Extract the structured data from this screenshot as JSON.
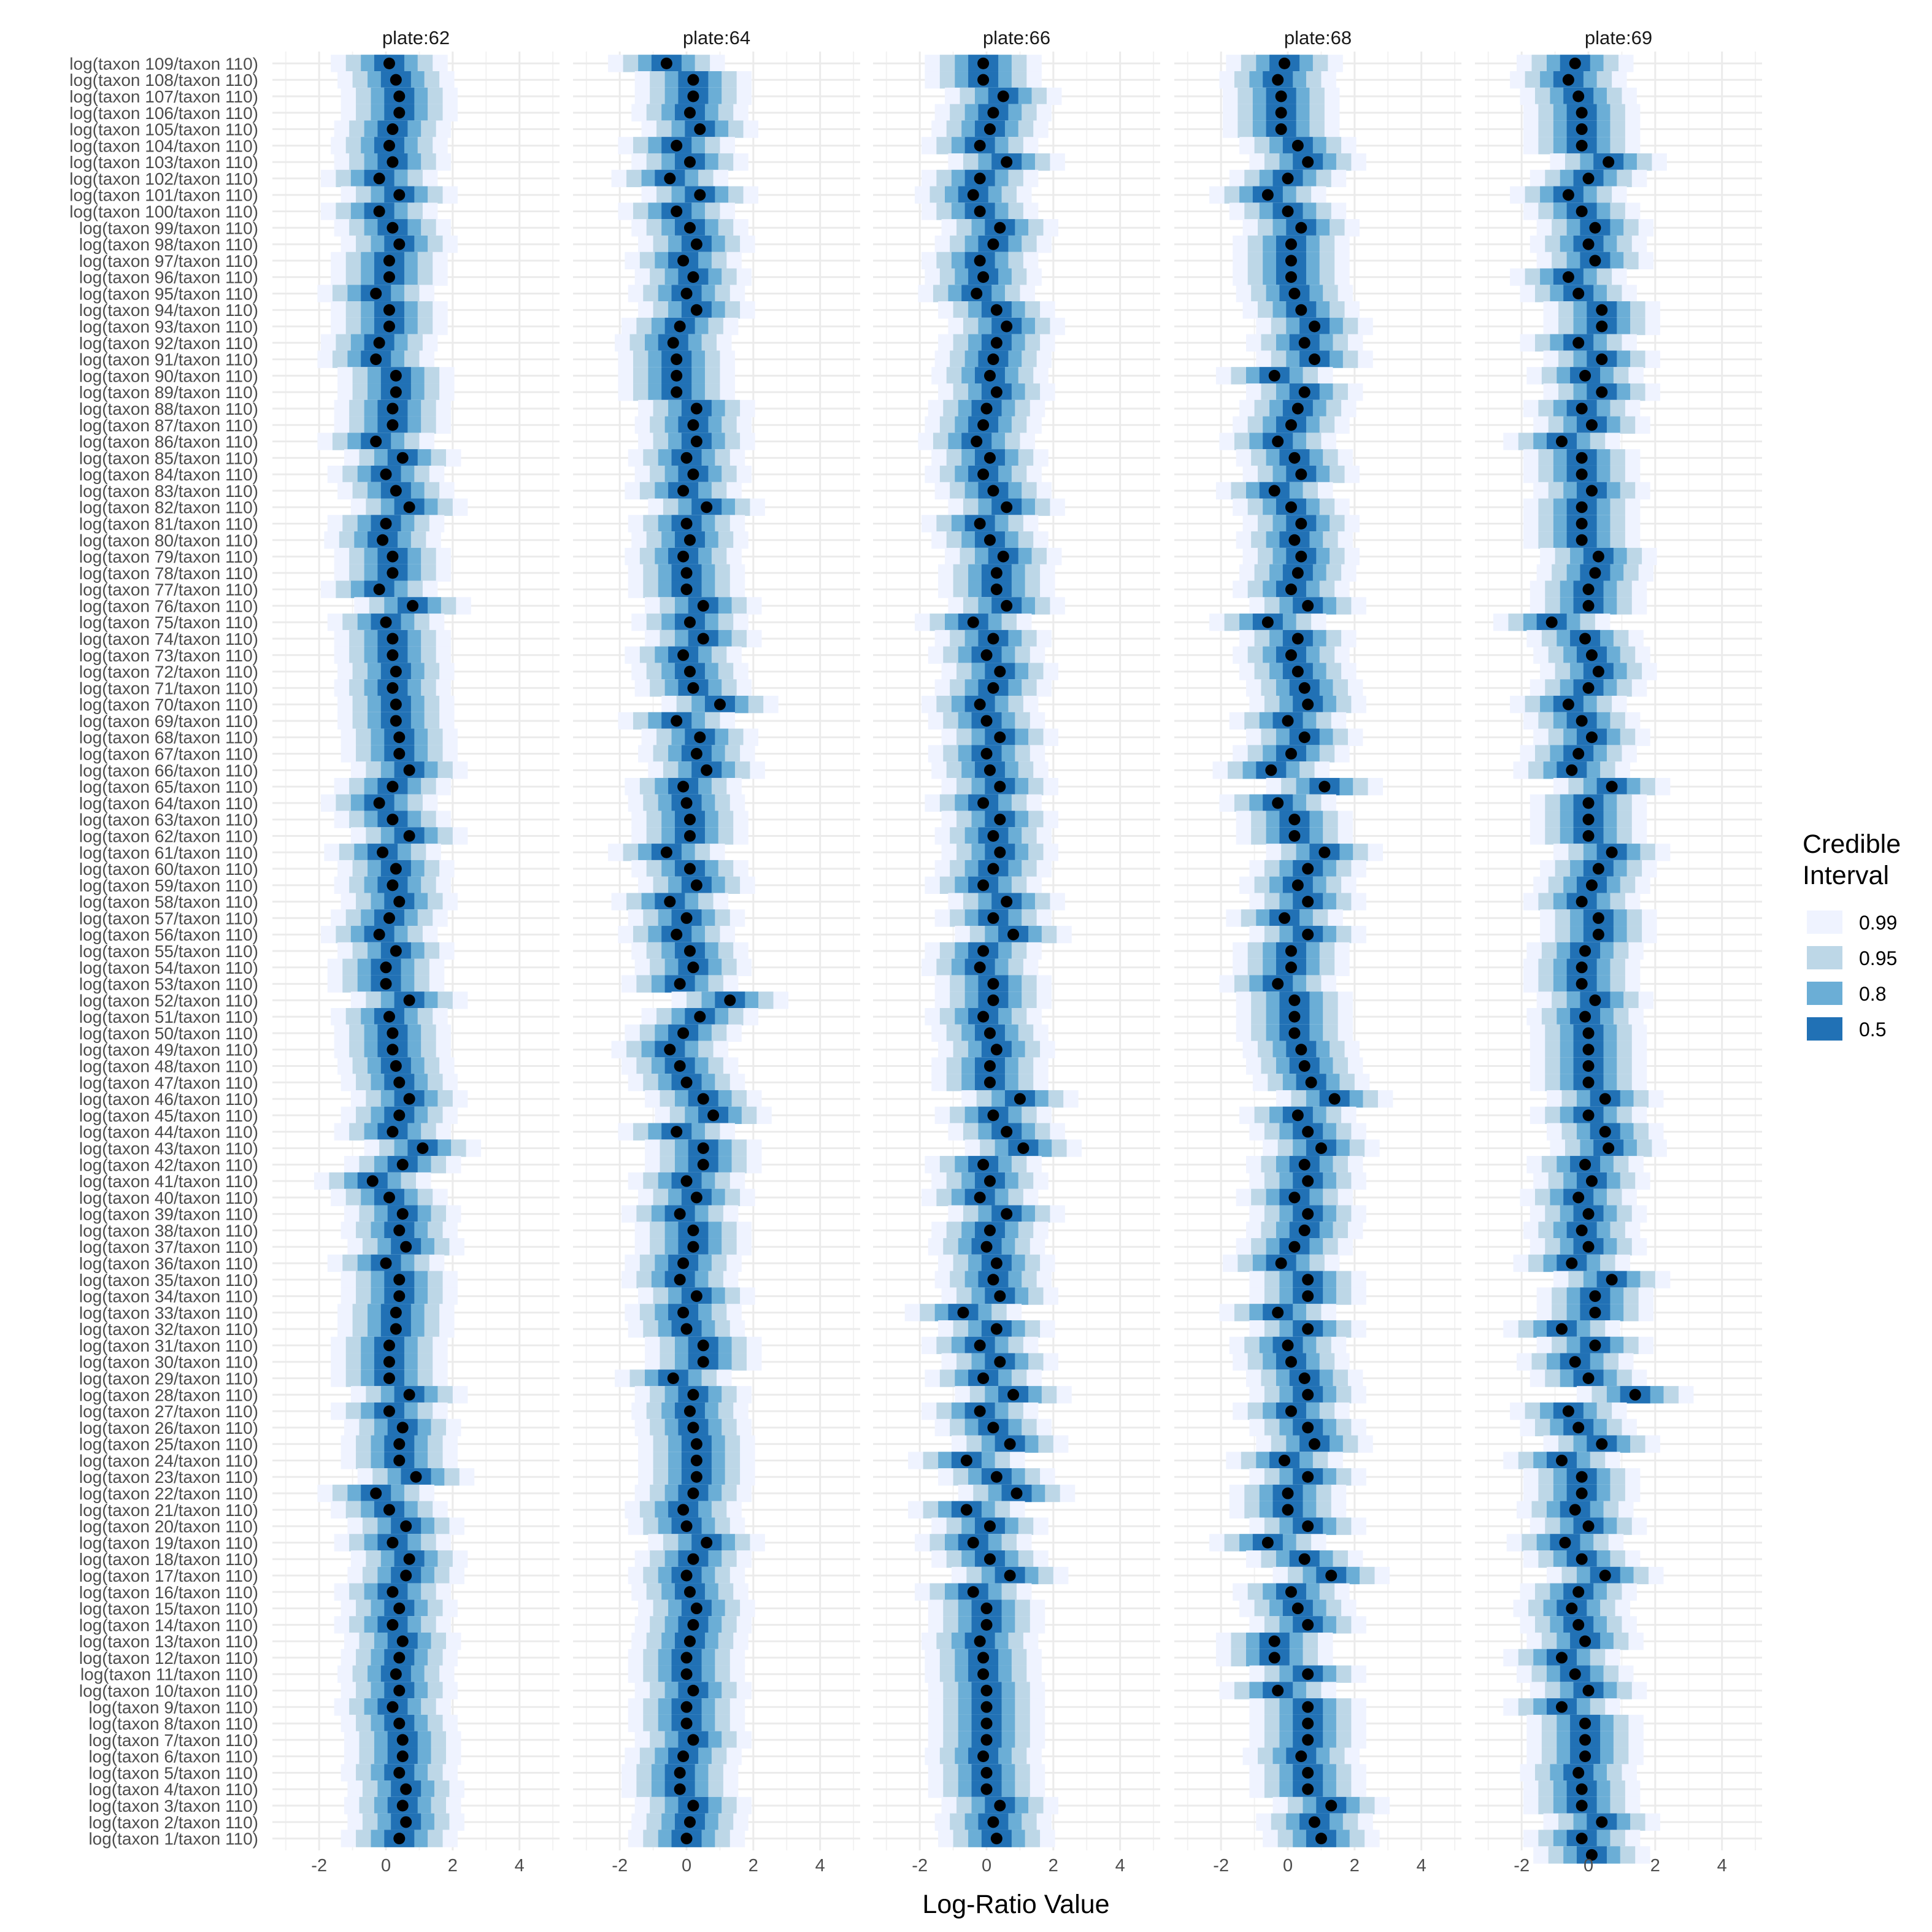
{
  "chart_data": {
    "type": "interval",
    "xlabel": "Log-Ratio Value",
    "ylabel": "",
    "xlim": [
      -3.4,
      5.2
    ],
    "x_ticks": [
      -2,
      0,
      2,
      4
    ],
    "x_tick_labels": [
      "-2",
      "0",
      "2",
      "4"
    ],
    "grid": true,
    "legend_position": "right",
    "legend": {
      "title": "Credible Interval",
      "title_lines": [
        "Credible",
        "Interval"
      ],
      "levels": [
        {
          "label": "0.99",
          "color": "#eff3ff"
        },
        {
          "label": "0.95",
          "color": "#bdd7e7"
        },
        {
          "label": "0.8",
          "color": "#6baed6"
        },
        {
          "label": "0.5",
          "color": "#2171b5"
        }
      ]
    },
    "point_color": "#000000",
    "half_widths": {
      "0.5": 0.45,
      "0.8": 0.85,
      "0.95": 1.3,
      "0.99": 1.75
    },
    "categories": [
      "log(taxon 109/taxon 110)",
      "log(taxon 108/taxon 110)",
      "log(taxon 107/taxon 110)",
      "log(taxon 106/taxon 110)",
      "log(taxon 105/taxon 110)",
      "log(taxon 104/taxon 110)",
      "log(taxon 103/taxon 110)",
      "log(taxon 102/taxon 110)",
      "log(taxon 101/taxon 110)",
      "log(taxon 100/taxon 110)",
      "log(taxon 99/taxon 110)",
      "log(taxon 98/taxon 110)",
      "log(taxon 97/taxon 110)",
      "log(taxon 96/taxon 110)",
      "log(taxon 95/taxon 110)",
      "log(taxon 94/taxon 110)",
      "log(taxon 93/taxon 110)",
      "log(taxon 92/taxon 110)",
      "log(taxon 91/taxon 110)",
      "log(taxon 90/taxon 110)",
      "log(taxon 89/taxon 110)",
      "log(taxon 88/taxon 110)",
      "log(taxon 87/taxon 110)",
      "log(taxon 86/taxon 110)",
      "log(taxon 85/taxon 110)",
      "log(taxon 84/taxon 110)",
      "log(taxon 83/taxon 110)",
      "log(taxon 82/taxon 110)",
      "log(taxon 81/taxon 110)",
      "log(taxon 80/taxon 110)",
      "log(taxon 79/taxon 110)",
      "log(taxon 78/taxon 110)",
      "log(taxon 77/taxon 110)",
      "log(taxon 76/taxon 110)",
      "log(taxon 75/taxon 110)",
      "log(taxon 74/taxon 110)",
      "log(taxon 73/taxon 110)",
      "log(taxon 72/taxon 110)",
      "log(taxon 71/taxon 110)",
      "log(taxon 70/taxon 110)",
      "log(taxon 69/taxon 110)",
      "log(taxon 68/taxon 110)",
      "log(taxon 67/taxon 110)",
      "log(taxon 66/taxon 110)",
      "log(taxon 65/taxon 110)",
      "log(taxon 64/taxon 110)",
      "log(taxon 63/taxon 110)",
      "log(taxon 62/taxon 110)",
      "log(taxon 61/taxon 110)",
      "log(taxon 60/taxon 110)",
      "log(taxon 59/taxon 110)",
      "log(taxon 58/taxon 110)",
      "log(taxon 57/taxon 110)",
      "log(taxon 56/taxon 110)",
      "log(taxon 55/taxon 110)",
      "log(taxon 54/taxon 110)",
      "log(taxon 53/taxon 110)",
      "log(taxon 52/taxon 110)",
      "log(taxon 51/taxon 110)",
      "log(taxon 50/taxon 110)",
      "log(taxon 49/taxon 110)",
      "log(taxon 48/taxon 110)",
      "log(taxon 47/taxon 110)",
      "log(taxon 46/taxon 110)",
      "log(taxon 45/taxon 110)",
      "log(taxon 44/taxon 110)",
      "log(taxon 43/taxon 110)",
      "log(taxon 42/taxon 110)",
      "log(taxon 41/taxon 110)",
      "log(taxon 40/taxon 110)",
      "log(taxon 39/taxon 110)",
      "log(taxon 38/taxon 110)",
      "log(taxon 37/taxon 110)",
      "log(taxon 36/taxon 110)",
      "log(taxon 35/taxon 110)",
      "log(taxon 34/taxon 110)",
      "log(taxon 33/taxon 110)",
      "log(taxon 32/taxon 110)",
      "log(taxon 31/taxon 110)",
      "log(taxon 30/taxon 110)",
      "log(taxon 29/taxon 110)",
      "log(taxon 28/taxon 110)",
      "log(taxon 27/taxon 110)",
      "log(taxon 26/taxon 110)",
      "log(taxon 25/taxon 110)",
      "log(taxon 24/taxon 110)",
      "log(taxon 23/taxon 110)",
      "log(taxon 22/taxon 110)",
      "log(taxon 21/taxon 110)",
      "log(taxon 20/taxon 110)",
      "log(taxon 19/taxon 110)",
      "log(taxon 18/taxon 110)",
      "log(taxon 17/taxon 110)",
      "log(taxon 16/taxon 110)",
      "log(taxon 15/taxon 110)",
      "log(taxon 14/taxon 110)",
      "log(taxon 13/taxon 110)",
      "log(taxon 12/taxon 110)",
      "log(taxon 11/taxon 110)",
      "log(taxon 10/taxon 110)",
      "log(taxon 9/taxon 110)",
      "log(taxon 8/taxon 110)",
      "log(taxon 7/taxon 110)",
      "log(taxon 6/taxon 110)",
      "log(taxon 5/taxon 110)",
      "log(taxon 4/taxon 110)",
      "log(taxon 3/taxon 110)",
      "log(taxon 2/taxon 110)",
      "log(taxon 1/taxon 110)"
    ],
    "panels": [
      {
        "name": "plate:62",
        "medians": [
          0.1,
          0.3,
          0.4,
          0.4,
          0.2,
          0.1,
          0.2,
          -0.2,
          0.4,
          -0.2,
          0.2,
          0.4,
          0.1,
          0.1,
          -0.3,
          0.1,
          0.1,
          -0.2,
          -0.3,
          0.3,
          0.3,
          0.2,
          0.2,
          -0.3,
          0.5,
          0.0,
          0.3,
          0.7,
          0.0,
          -0.1,
          0.2,
          0.2,
          -0.2,
          0.8,
          0.0,
          0.2,
          0.2,
          0.3,
          0.2,
          0.3,
          0.3,
          0.4,
          0.4,
          0.7,
          0.2,
          -0.2,
          0.2,
          0.7,
          -0.1,
          0.3,
          0.2,
          0.4,
          0.1,
          -0.2,
          0.3,
          0.0,
          0.0,
          0.7,
          0.1,
          0.2,
          0.2,
          0.3,
          0.4,
          0.7,
          0.4,
          0.2,
          1.1,
          0.5,
          -0.4,
          0.1,
          0.5,
          0.4,
          0.6,
          0.0,
          0.4,
          0.4,
          0.3,
          0.3,
          0.1,
          0.1,
          0.1,
          0.7,
          0.1,
          0.5,
          0.4,
          0.4,
          0.9,
          -0.3,
          0.1,
          0.6,
          0.2,
          0.7,
          0.6,
          0.2,
          0.4,
          0.2,
          0.5,
          0.4,
          0.3,
          0.4,
          0.2,
          0.4,
          0.5,
          0.5,
          0.4,
          0.6,
          0.5,
          0.6,
          0.4
        ]
      },
      {
        "name": "plate:64",
        "medians": [
          -0.6,
          0.2,
          0.2,
          0.1,
          0.4,
          -0.3,
          0.1,
          -0.5,
          0.4,
          -0.3,
          0.1,
          0.3,
          -0.1,
          0.2,
          0.0,
          0.3,
          -0.2,
          -0.4,
          -0.3,
          -0.3,
          -0.3,
          0.3,
          0.2,
          0.3,
          0.0,
          0.2,
          -0.1,
          0.6,
          0.0,
          0.1,
          -0.1,
          0.0,
          0.0,
          0.5,
          0.1,
          0.5,
          -0.1,
          0.1,
          0.2,
          1.0,
          -0.3,
          0.4,
          0.3,
          0.6,
          -0.1,
          0.0,
          0.1,
          0.1,
          -0.6,
          0.1,
          0.3,
          -0.5,
          0.0,
          -0.3,
          0.1,
          0.2,
          -0.2,
          1.3,
          0.4,
          -0.1,
          -0.5,
          -0.2,
          0.0,
          0.5,
          0.8,
          -0.3,
          0.5,
          0.5,
          0.0,
          0.3,
          -0.2,
          0.2,
          0.2,
          -0.1,
          -0.2,
          0.3,
          -0.1,
          0.0,
          0.5,
          0.5,
          -0.4,
          0.2,
          0.1,
          0.2,
          0.3,
          0.3,
          0.3,
          0.2,
          -0.1,
          0.0,
          0.6,
          0.2,
          0.0,
          0.1,
          0.3,
          0.2,
          0.1,
          0.0,
          0.0,
          0.2,
          0.0,
          0.0,
          0.2,
          -0.1,
          -0.2,
          -0.2,
          0.2,
          0.1,
          0.0
        ]
      },
      {
        "name": "plate:66",
        "medians": [
          -0.1,
          -0.1,
          0.5,
          0.2,
          0.1,
          -0.2,
          0.6,
          -0.2,
          -0.4,
          -0.2,
          0.4,
          0.2,
          -0.2,
          -0.1,
          -0.3,
          0.3,
          0.6,
          0.3,
          0.2,
          0.1,
          0.3,
          0.0,
          -0.1,
          -0.3,
          0.1,
          -0.1,
          0.2,
          0.6,
          -0.2,
          0.1,
          0.5,
          0.3,
          0.3,
          0.6,
          -0.4,
          0.2,
          0.0,
          0.4,
          0.2,
          -0.2,
          0.0,
          0.4,
          0.0,
          0.1,
          0.4,
          -0.1,
          0.4,
          0.2,
          0.4,
          0.2,
          -0.1,
          0.6,
          0.2,
          0.8,
          -0.1,
          -0.2,
          0.2,
          0.2,
          -0.1,
          0.1,
          0.3,
          0.1,
          0.1,
          1.0,
          0.2,
          0.6,
          1.1,
          -0.1,
          0.1,
          -0.2,
          0.6,
          0.1,
          0.0,
          0.3,
          0.2,
          0.4,
          -0.7,
          0.3,
          -0.2,
          0.4,
          -0.1,
          0.8,
          -0.2,
          0.2,
          0.7,
          -0.6,
          0.3,
          0.9,
          -0.6,
          0.1,
          -0.4,
          0.1,
          0.7,
          -0.4,
          0.0,
          0.0,
          -0.2,
          -0.1,
          -0.1,
          0.0,
          0.0,
          0.0,
          0.0,
          -0.1,
          0.0,
          0.0,
          0.4,
          0.2,
          0.3
        ]
      },
      {
        "name": "plate:68",
        "medians": [
          -0.1,
          -0.3,
          -0.2,
          -0.2,
          -0.2,
          0.3,
          0.6,
          0.0,
          -0.6,
          0.0,
          0.4,
          0.1,
          0.1,
          0.1,
          0.2,
          0.4,
          0.8,
          0.5,
          0.8,
          -0.4,
          0.5,
          0.3,
          0.1,
          -0.3,
          0.2,
          0.4,
          -0.4,
          0.1,
          0.4,
          0.2,
          0.4,
          0.3,
          0.1,
          0.6,
          -0.6,
          0.3,
          0.1,
          0.3,
          0.5,
          0.6,
          0.0,
          0.5,
          0.1,
          -0.5,
          1.1,
          -0.3,
          0.2,
          0.2,
          1.1,
          0.6,
          0.3,
          0.6,
          -0.1,
          0.6,
          0.1,
          0.1,
          -0.3,
          0.2,
          0.2,
          0.2,
          0.4,
          0.5,
          0.7,
          1.4,
          0.3,
          0.6,
          1.0,
          0.5,
          0.6,
          0.2,
          0.6,
          0.5,
          0.2,
          -0.2,
          0.6,
          0.6,
          -0.3,
          0.6,
          0.0,
          0.1,
          0.5,
          0.6,
          0.1,
          0.6,
          0.8,
          -0.1,
          0.6,
          0.0,
          0.0,
          0.6,
          -0.6,
          0.5,
          1.3,
          0.1,
          0.3,
          0.6,
          -0.4,
          -0.4,
          0.6,
          -0.3,
          0.6,
          0.6,
          0.6,
          0.4,
          0.6,
          0.6,
          1.3,
          0.8,
          1.0
        ]
      },
      {
        "name": "plate:69",
        "medians": [
          -0.4,
          -0.6,
          -0.3,
          -0.2,
          -0.2,
          -0.2,
          0.6,
          0.0,
          -0.6,
          -0.2,
          0.2,
          0.0,
          0.2,
          -0.6,
          -0.3,
          0.4,
          0.4,
          -0.3,
          0.4,
          -0.1,
          0.4,
          -0.2,
          0.1,
          -0.8,
          -0.2,
          -0.2,
          0.1,
          -0.2,
          -0.2,
          -0.2,
          0.3,
          0.2,
          0.0,
          0.0,
          -1.1,
          -0.1,
          0.1,
          0.3,
          0.0,
          -0.6,
          -0.2,
          0.1,
          -0.3,
          -0.5,
          0.7,
          0.0,
          0.0,
          0.0,
          0.7,
          0.3,
          0.1,
          -0.2,
          0.3,
          0.3,
          -0.1,
          -0.2,
          -0.2,
          0.2,
          -0.1,
          0.0,
          0.0,
          0.0,
          0.0,
          0.5,
          0.0,
          0.5,
          0.6,
          -0.1,
          0.1,
          -0.3,
          0.0,
          -0.2,
          0.0,
          -0.5,
          0.7,
          0.2,
          0.2,
          -0.8,
          0.2,
          -0.4,
          0.0,
          1.4,
          -0.6,
          -0.3,
          0.4,
          -0.8,
          -0.2,
          -0.2,
          -0.4,
          0.0,
          -0.7,
          -0.2,
          0.5,
          -0.3,
          -0.5,
          -0.3,
          -0.1,
          -0.8,
          -0.4,
          0.0,
          -0.8,
          -0.1,
          -0.1,
          -0.1,
          -0.3,
          -0.2,
          -0.2,
          0.4,
          -0.2,
          0.1
        ]
      }
    ]
  }
}
